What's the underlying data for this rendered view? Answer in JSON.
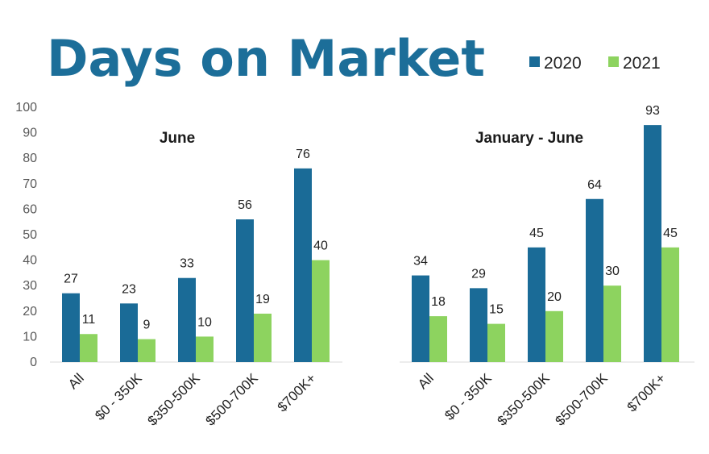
{
  "chart_data": {
    "type": "bar",
    "title": "Days on Market",
    "ylim": [
      0,
      100
    ],
    "yticks": [
      0,
      10,
      20,
      30,
      40,
      50,
      60,
      70,
      80,
      90,
      100
    ],
    "legend": [
      "2020",
      "2021"
    ],
    "colors": {
      "2020": "#1a6b97",
      "2021": "#8dd35f",
      "title": "#1c6e99"
    },
    "groups": [
      {
        "label": "June",
        "categories": [
          "All",
          "$0 - 350K",
          "$350-500K",
          "$500-700K",
          "$700K+"
        ],
        "series": [
          {
            "name": "2020",
            "values": [
              27,
              23,
              33,
              56,
              76
            ]
          },
          {
            "name": "2021",
            "values": [
              11,
              9,
              10,
              19,
              40
            ]
          }
        ]
      },
      {
        "label": "January - June",
        "categories": [
          "All",
          "$0 - 350K",
          "$350-500K",
          "$500-700K",
          "$700K+"
        ],
        "series": [
          {
            "name": "2020",
            "values": [
              34,
              29,
              45,
              64,
              93
            ]
          },
          {
            "name": "2021",
            "values": [
              18,
              15,
              20,
              30,
              45
            ]
          }
        ]
      }
    ]
  }
}
